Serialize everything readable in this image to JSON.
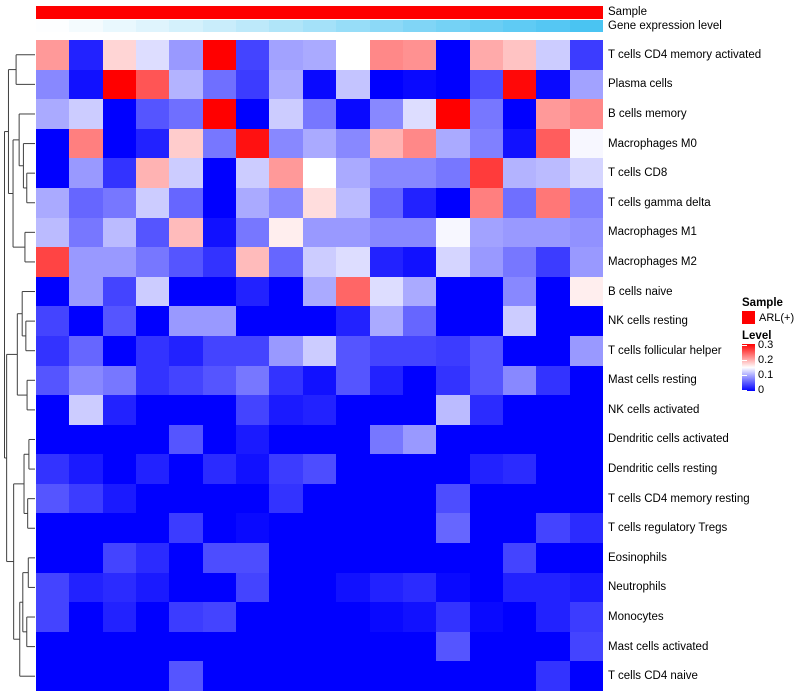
{
  "annotations": {
    "sample": {
      "label": "Sample",
      "value_for_all_columns": "ARL(+)",
      "color": "#FE0000"
    },
    "gene_expression": {
      "label": "Gene expression level",
      "values": [
        0,
        0.05,
        0.11,
        0.17,
        0.23,
        0.29,
        0.36,
        0.43,
        0.5,
        0.57,
        0.63,
        0.7,
        0.76,
        0.82,
        0.88,
        0.94,
        1
      ],
      "color_low": "#FDFEFF",
      "color_high": "#4AC4F2"
    }
  },
  "legend": {
    "sample_title": "Sample",
    "sample_items": [
      {
        "label": "ARL(+)",
        "color": "#FE0000"
      }
    ],
    "level_title": "Level",
    "level_ticks": [
      "0.3",
      "0.2",
      "0.1",
      "0"
    ],
    "level_scale": {
      "min": 0,
      "mid": 0.15,
      "max": 0.3,
      "low_color": "#0000FF",
      "mid_color": "#FFFFFF",
      "high_color": "#FF0000"
    }
  },
  "chart_data": {
    "type": "heatmap",
    "title": "",
    "rows": [
      "T cells CD4 memory activated",
      "Plasma cells",
      "B cells memory",
      "Macrophages M0",
      "T cells CD8",
      "T cells gamma delta",
      "Macrophages M1",
      "Macrophages M2",
      "B cells naive",
      "NK cells resting",
      "T cells follicular helper",
      "Mast cells resting",
      "NK cells activated",
      "Dendritic cells activated",
      "Dendritic cells resting",
      "T cells CD4 memory resting",
      "T cells regulatory  Tregs",
      "Eosinophils",
      "Neutrophils",
      "Monocytes",
      "Mast cells activated",
      "T cells CD4 naive"
    ],
    "columns": {
      "count": 17,
      "labels_visible": false,
      "all_samples_group": "ARL(+)"
    },
    "value_range": [
      0,
      0.3
    ],
    "colormap": {
      "low": "#0000FF",
      "mid": "#FFFFFF",
      "high": "#FF0000",
      "midpoint": 0.15
    },
    "values": [
      [
        0.21,
        0.02,
        0.175,
        0.13,
        0.09,
        0.3,
        0.04,
        0.095,
        0.1,
        0.15,
        0.22,
        0.215,
        0,
        0.2,
        0.185,
        0.12,
        0.035
      ],
      [
        0.08,
        0.01,
        0.3,
        0.25,
        0.105,
        0.065,
        0.035,
        0.1,
        0.005,
        0.115,
        0,
        0.005,
        0,
        0.045,
        0.295,
        0.005,
        0.095
      ],
      [
        0.1,
        0.12,
        0,
        0.05,
        0.065,
        0.3,
        0,
        0.12,
        0.07,
        0.005,
        0.08,
        0.13,
        0.3,
        0.07,
        0,
        0.21,
        0.22
      ],
      [
        0,
        0.225,
        0,
        0.02,
        0.18,
        0.07,
        0.29,
        0.08,
        0.1,
        0.08,
        0.195,
        0.22,
        0.1,
        0.075,
        0.01,
        0.245,
        0.145
      ],
      [
        0,
        0.09,
        0.03,
        0.195,
        0.12,
        0,
        0.12,
        0.21,
        0.15,
        0.1,
        0.08,
        0.08,
        0.07,
        0.265,
        0.105,
        0.11,
        0.125
      ],
      [
        0.1,
        0.06,
        0.07,
        0.12,
        0.06,
        0,
        0.1,
        0.08,
        0.17,
        0.11,
        0.06,
        0.02,
        0,
        0.225,
        0.065,
        0.23,
        0.075
      ],
      [
        0.11,
        0.07,
        0.11,
        0.05,
        0.19,
        0.01,
        0.07,
        0.16,
        0.09,
        0.09,
        0.08,
        0.08,
        0.145,
        0.095,
        0.09,
        0.09,
        0.085
      ],
      [
        0.26,
        0.09,
        0.09,
        0.07,
        0.05,
        0.03,
        0.19,
        0.06,
        0.12,
        0.13,
        0.02,
        0.01,
        0.125,
        0.09,
        0.07,
        0.035,
        0.09
      ],
      [
        0,
        0.09,
        0.04,
        0.12,
        0,
        0,
        0.02,
        0,
        0.1,
        0.24,
        0.13,
        0.1,
        0,
        0,
        0.08,
        0,
        0.16
      ],
      [
        0.04,
        0,
        0.05,
        0,
        0.09,
        0.09,
        0,
        0,
        0,
        0.02,
        0.1,
        0.06,
        0,
        0,
        0.12,
        0,
        0
      ],
      [
        0.03,
        0.06,
        0,
        0.03,
        0.02,
        0.04,
        0.04,
        0.09,
        0.12,
        0.05,
        0.04,
        0.04,
        0.035,
        0.05,
        0,
        0,
        0.09
      ],
      [
        0.05,
        0.08,
        0.07,
        0.03,
        0.04,
        0.05,
        0.07,
        0.03,
        0.01,
        0.05,
        0.02,
        0,
        0.03,
        0.05,
        0.08,
        0.03,
        0
      ],
      [
        0,
        0.12,
        0.02,
        0,
        0,
        0,
        0.04,
        0.015,
        0.02,
        0,
        0,
        0,
        0.11,
        0.025,
        0,
        0,
        0
      ],
      [
        0,
        0,
        0,
        0,
        0.05,
        0,
        0.015,
        0,
        0,
        0,
        0.07,
        0.09,
        0,
        0,
        0,
        0,
        0
      ],
      [
        0.03,
        0.015,
        0,
        0.02,
        0,
        0.025,
        0.01,
        0.035,
        0.045,
        0,
        0,
        0,
        0,
        0.02,
        0.025,
        0,
        0
      ],
      [
        0.05,
        0.035,
        0.015,
        0,
        0,
        0,
        0,
        0.03,
        0,
        0,
        0,
        0,
        0.045,
        0,
        0,
        0,
        0
      ],
      [
        0,
        0,
        0,
        0,
        0.035,
        0,
        0.005,
        0,
        0,
        0,
        0,
        0,
        0.06,
        0,
        0,
        0.04,
        0.025
      ],
      [
        0,
        0,
        0.04,
        0.025,
        0,
        0.045,
        0.045,
        0,
        0,
        0,
        0,
        0,
        0,
        0,
        0.04,
        0,
        0
      ],
      [
        0.04,
        0.02,
        0.025,
        0.015,
        0,
        0,
        0.04,
        0,
        0,
        0.01,
        0.02,
        0.025,
        0.005,
        0,
        0.02,
        0.02,
        0.015
      ],
      [
        0.04,
        0,
        0.02,
        0,
        0.035,
        0.04,
        0,
        0,
        0,
        0,
        0.005,
        0.01,
        0.03,
        0.005,
        0,
        0.02,
        0.035
      ],
      [
        0,
        0,
        0,
        0,
        0,
        0,
        0,
        0,
        0,
        0,
        0,
        0,
        0.05,
        0,
        0,
        0,
        0.04
      ],
      [
        0,
        0,
        0,
        0,
        0.05,
        0,
        0,
        0,
        0,
        0,
        0,
        0,
        0,
        0,
        0,
        0.03,
        0
      ]
    ],
    "row_dendrogram": {
      "h": 1.0,
      "c": [
        {
          "h": 0.87,
          "c": [
            {
              "h": 0.62,
              "c": [
                1,
                2
              ]
            },
            {
              "h": 0.72,
              "c": [
                {
                  "h": 0.52,
                  "c": [
                    3,
                    {
                      "h": 0.38,
                      "c": [
                        4,
                        {
                          "h": 0.27,
                          "c": [
                            5,
                            6
                          ]
                        }
                      ]
                    }
                  ]
                },
                {
                  "h": 0.33,
                  "c": [
                    7,
                    8
                  ]
                }
              ]
            }
          ]
        },
        {
          "h": 0.93,
          "c": [
            {
              "h": 0.58,
              "c": [
                {
                  "h": 0.42,
                  "c": [
                    9,
                    {
                      "h": 0.3,
                      "c": [
                        10,
                        11
                      ]
                    }
                  ]
                },
                {
                  "h": 0.26,
                  "c": [
                    12,
                    13
                  ]
                }
              ]
            },
            {
              "h": 0.7,
              "c": [
                {
                  "h": 0.36,
                  "c": [
                    {
                      "h": 0.2,
                      "c": [
                        14,
                        15
                      ]
                    },
                    {
                      "h": 0.24,
                      "c": [
                        16,
                        17
                      ]
                    }
                  ]
                },
                {
                  "h": 0.5,
                  "c": [
                    {
                      "h": 0.4,
                      "c": [
                        {
                          "h": 0.22,
                          "c": [
                            18,
                            19
                          ]
                        },
                        {
                          "h": 0.27,
                          "c": [
                            20,
                            21
                          ]
                        }
                      ]
                    },
                    22
                  ]
                }
              ]
            }
          ]
        }
      ]
    }
  }
}
